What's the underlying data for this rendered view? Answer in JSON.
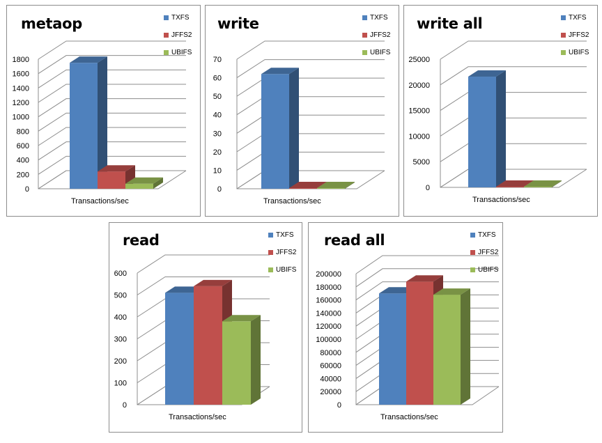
{
  "colors": {
    "TXFS": "#4f81bd",
    "JFFS2": "#c0504d",
    "UBIFS": "#9bbb59"
  },
  "chart_data": [
    {
      "id": "metaop",
      "type": "bar",
      "title": "metaop",
      "xlabel": "Transactions/sec",
      "ylabel": "",
      "categories": [
        "Transactions/sec"
      ],
      "series": [
        {
          "name": "TXFS",
          "values": [
            1750
          ]
        },
        {
          "name": "JFFS2",
          "values": [
            240
          ]
        },
        {
          "name": "UBIFS",
          "values": [
            70
          ]
        }
      ],
      "ylim": [
        0,
        1800
      ],
      "yticks": [
        "0",
        "200",
        "400",
        "600",
        "800",
        "1000",
        "1200",
        "1400",
        "1600",
        "1800"
      ],
      "legend": "top-right",
      "grid": true
    },
    {
      "id": "write",
      "type": "bar",
      "title": "write",
      "xlabel": "Transactions/sec",
      "ylabel": "",
      "categories": [
        "Transactions/sec"
      ],
      "series": [
        {
          "name": "TXFS",
          "values": [
            62
          ]
        },
        {
          "name": "JFFS2",
          "values": [
            0.3
          ]
        },
        {
          "name": "UBIFS",
          "values": [
            0.2
          ]
        }
      ],
      "ylim": [
        0,
        70
      ],
      "yticks": [
        "0",
        "10",
        "20",
        "30",
        "40",
        "50",
        "60",
        "70"
      ],
      "legend": "top-right",
      "grid": true
    },
    {
      "id": "write-all",
      "type": "bar",
      "title": "write all",
      "xlabel": "Transactions/sec",
      "ylabel": "",
      "categories": [
        "Transactions/sec"
      ],
      "series": [
        {
          "name": "TXFS",
          "values": [
            21600
          ]
        },
        {
          "name": "JFFS2",
          "values": [
            120
          ]
        },
        {
          "name": "UBIFS",
          "values": [
            60
          ]
        }
      ],
      "ylim": [
        0,
        25000
      ],
      "yticks": [
        "0",
        "5000",
        "10000",
        "15000",
        "20000",
        "25000"
      ],
      "legend": "top-right",
      "grid": true
    },
    {
      "id": "read",
      "type": "bar",
      "title": "read",
      "xlabel": "Transactions/sec",
      "ylabel": "",
      "categories": [
        "Transactions/sec"
      ],
      "series": [
        {
          "name": "TXFS",
          "values": [
            510
          ]
        },
        {
          "name": "JFFS2",
          "values": [
            540
          ]
        },
        {
          "name": "UBIFS",
          "values": [
            380
          ]
        }
      ],
      "ylim": [
        0,
        600
      ],
      "yticks": [
        "0",
        "100",
        "200",
        "300",
        "400",
        "500",
        "600"
      ],
      "legend": "top-right",
      "grid": true
    },
    {
      "id": "read-all",
      "type": "bar",
      "title": "read all",
      "xlabel": "Transactions/sec",
      "ylabel": "",
      "categories": [
        "Transactions/sec"
      ],
      "series": [
        {
          "name": "TXFS",
          "values": [
            170000
          ]
        },
        {
          "name": "JFFS2",
          "values": [
            188000
          ]
        },
        {
          "name": "UBIFS",
          "values": [
            168000
          ]
        }
      ],
      "ylim": [
        0,
        200000
      ],
      "yticks": [
        "0",
        "20000",
        "40000",
        "60000",
        "80000",
        "100000",
        "120000",
        "140000",
        "160000",
        "180000",
        "200000"
      ],
      "legend": "top-right",
      "grid": true
    }
  ]
}
